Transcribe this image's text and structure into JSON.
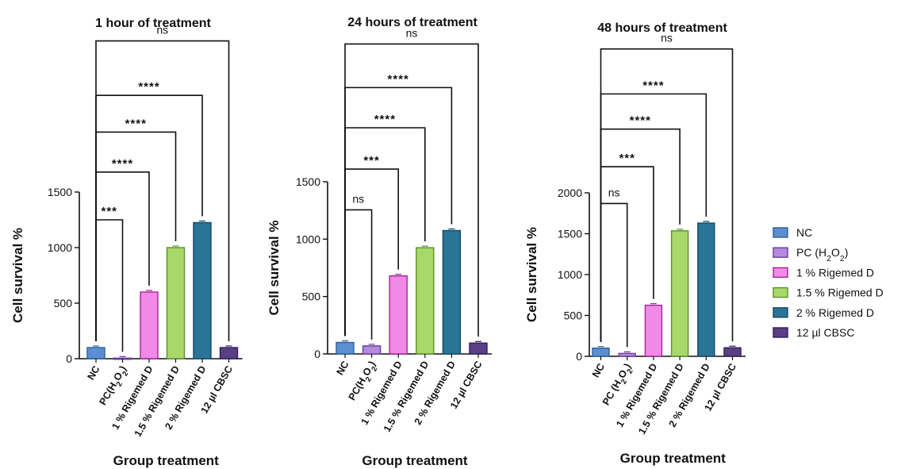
{
  "legend": [
    {
      "label": "NC",
      "color": "#5b8fd1",
      "edge": "#2f5f9a"
    },
    {
      "label": "PC (H2O2)",
      "color": "#b58ae0",
      "edge": "#6a3c9c"
    },
    {
      "label": "1 %  Rigemed D",
      "color": "#f08ae6",
      "edge": "#a2259a"
    },
    {
      "label": "1.5 % Rigemed D",
      "color": "#a8d86a",
      "edge": "#5e8f2a"
    },
    {
      "label": "2 %  Rigemed D",
      "color": "#2a7498",
      "edge": "#134a66"
    },
    {
      "label": "12 µl CBSC",
      "color": "#5a3f86",
      "edge": "#33205a"
    }
  ],
  "chart_data": [
    {
      "type": "bar",
      "title": "1 hour of treatment",
      "xlabel": "Group treatment",
      "ylabel": "Cell survival %",
      "categories": [
        "NC",
        "PC(H2O2)",
        "1 % Rigemed D",
        "1.5 % Rigemed D",
        "2 % Rigemed D",
        "12 µl CBSC"
      ],
      "values": [
        100,
        5,
        600,
        1000,
        1225,
        100
      ],
      "ylim": [
        0,
        1500
      ],
      "yticks": [
        0,
        500,
        1000,
        1500
      ],
      "comparisons": [
        {
          "from": 0,
          "to": 1,
          "label": "***",
          "level": 1250
        },
        {
          "from": 0,
          "to": 2,
          "label": "****",
          "level": 1680
        },
        {
          "from": 0,
          "to": 3,
          "label": "****",
          "level": 2040
        },
        {
          "from": 0,
          "to": 4,
          "label": "****",
          "level": 2370
        },
        {
          "from": 0,
          "to": 5,
          "label": "ns",
          "level": 2860
        }
      ]
    },
    {
      "type": "bar",
      "title": "24 hours of treatment",
      "xlabel": "Group treatment",
      "ylabel": "Cell survival %",
      "categories": [
        "NC",
        "PC(H2O2)",
        "1 % Rigemed D",
        "1.5 % Rigemed D",
        "2 % Rigemed D",
        "12 µl CBSC"
      ],
      "values": [
        100,
        70,
        680,
        925,
        1075,
        95
      ],
      "ylim": [
        0,
        1500
      ],
      "yticks": [
        0,
        500,
        1000,
        1500
      ],
      "comparisons": [
        {
          "from": 0,
          "to": 1,
          "label": "ns",
          "level": 1255
        },
        {
          "from": 0,
          "to": 2,
          "label": "***",
          "level": 1610
        },
        {
          "from": 0,
          "to": 3,
          "label": "****",
          "level": 1970
        },
        {
          "from": 0,
          "to": 4,
          "label": "****",
          "level": 2320
        },
        {
          "from": 0,
          "to": 5,
          "label": "ns",
          "level": 2700
        }
      ]
    },
    {
      "type": "bar",
      "title": "48 hours of treatment",
      "xlabel": "Group treatment",
      "ylabel": "Cell survival %",
      "categories": [
        "NC",
        "PC (H2O2)",
        "1 % Rigemed D",
        "1.5 % Rigemed D",
        "2 % Rigemed D",
        "12 µl CBSC"
      ],
      "values": [
        100,
        35,
        625,
        1535,
        1630,
        105
      ],
      "ylim": [
        0,
        2000
      ],
      "yticks": [
        0,
        500,
        1000,
        1500,
        2000
      ],
      "comparisons": [
        {
          "from": 0,
          "to": 1,
          "label": "ns",
          "level": 1870
        },
        {
          "from": 0,
          "to": 2,
          "label": "***",
          "level": 2320
        },
        {
          "from": 0,
          "to": 3,
          "label": "****",
          "level": 2780
        },
        {
          "from": 0,
          "to": 4,
          "label": "****",
          "level": 3210
        },
        {
          "from": 0,
          "to": 5,
          "label": "ns",
          "level": 3760
        }
      ]
    }
  ]
}
